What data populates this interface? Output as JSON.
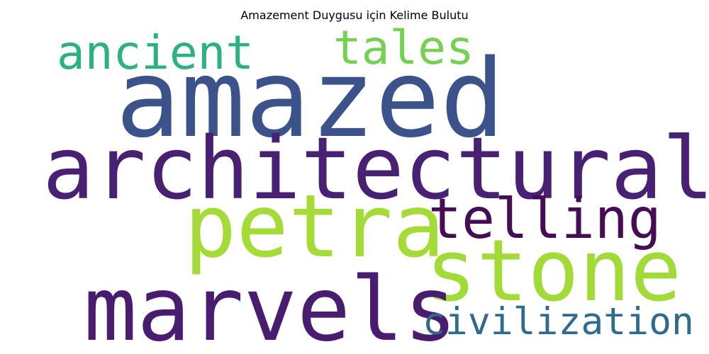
{
  "title": "Amazement Duygusu için Kelime Bulutu",
  "words": [
    {
      "text": "amazed",
      "color": "#3b528b"
    },
    {
      "text": "architectural",
      "color": "#482173"
    },
    {
      "text": "ancient",
      "color": "#2db27d"
    },
    {
      "text": "tales",
      "color": "#75d054"
    },
    {
      "text": "petra",
      "color": "#a5db36"
    },
    {
      "text": "telling",
      "color": "#440d54"
    },
    {
      "text": "stone",
      "color": "#a2da37"
    },
    {
      "text": "marvels",
      "color": "#481c6e"
    },
    {
      "text": "civilization",
      "color": "#2f6b8e"
    }
  ]
}
